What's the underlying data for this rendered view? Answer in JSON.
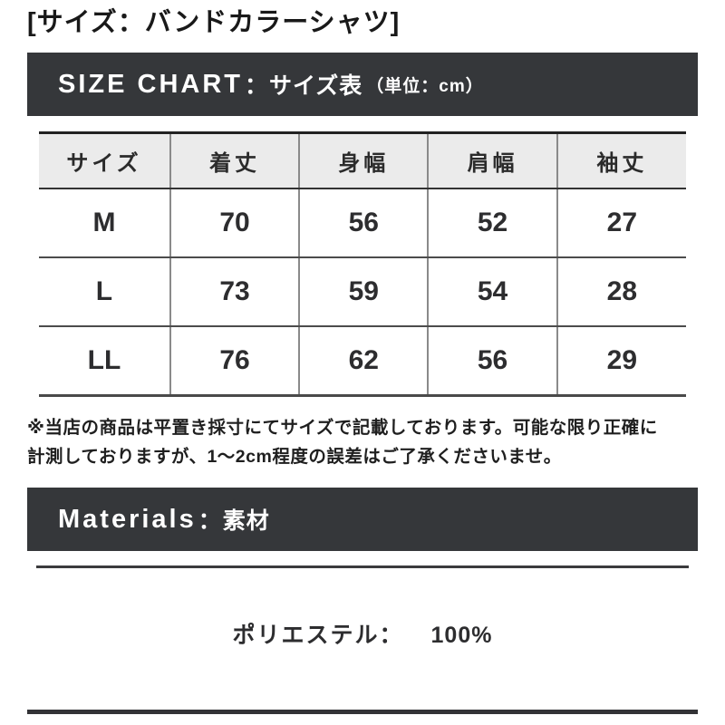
{
  "page": {
    "title": "[サイズ：バンドカラーシャツ]"
  },
  "size_chart": {
    "heading_en": "SIZE CHART",
    "heading_sep": "：",
    "heading_ja": "サイズ表",
    "heading_unit": "（単位：cm）",
    "table": {
      "columns": [
        "サイズ",
        "着丈",
        "身幅",
        "肩幅",
        "袖丈"
      ],
      "rows": [
        [
          "M",
          "70",
          "56",
          "52",
          "27"
        ],
        [
          "L",
          "73",
          "59",
          "54",
          "28"
        ],
        [
          "LL",
          "76",
          "62",
          "56",
          "29"
        ]
      ]
    },
    "note_line1": "※当店の商品は平置き採寸にてサイズで記載しております。可能な限り正確に",
    "note_line2": "計測しておりますが、1〜2cm程度の誤差はご了承くださいませ。"
  },
  "materials": {
    "heading_en": "Materials",
    "heading_sep": "：",
    "heading_ja": "素材",
    "composition_label": "ポリエステル：",
    "composition_value": "100%"
  },
  "colors": {
    "banner_bg": "#35373a",
    "table_header_bg": "#ebebeb",
    "text": "#1c1c1e"
  }
}
